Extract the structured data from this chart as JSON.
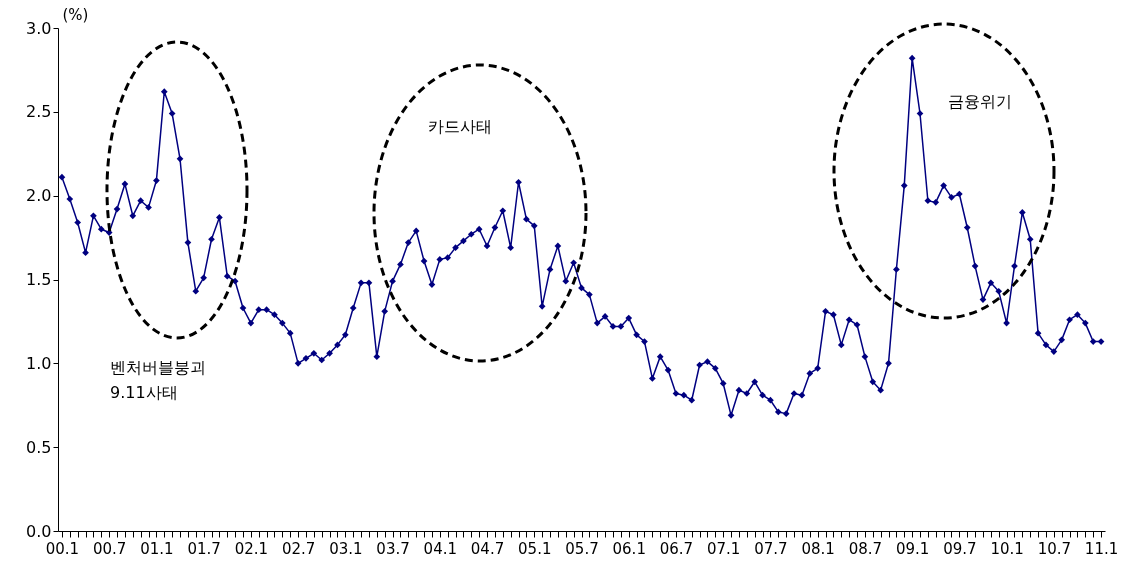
{
  "chart_data": {
    "type": "line",
    "ylabel": "(%)",
    "categories": [
      "00.1",
      null,
      null,
      null,
      null,
      null,
      "00.7",
      null,
      null,
      null,
      null,
      null,
      "01.1",
      null,
      null,
      null,
      null,
      null,
      "01.7",
      null,
      null,
      null,
      null,
      null,
      "02.1",
      null,
      null,
      null,
      null,
      null,
      "02.7",
      null,
      null,
      null,
      null,
      null,
      "03.1",
      null,
      null,
      null,
      null,
      null,
      "03.7",
      null,
      null,
      null,
      null,
      null,
      "04.1",
      null,
      null,
      null,
      null,
      null,
      "04.7",
      null,
      null,
      null,
      null,
      null,
      "05.1",
      null,
      null,
      null,
      null,
      null,
      "05.7",
      null,
      null,
      null,
      null,
      null,
      "06.1",
      null,
      null,
      null,
      null,
      null,
      "06.7",
      null,
      null,
      null,
      null,
      null,
      "07.1",
      null,
      null,
      null,
      null,
      null,
      "07.7",
      null,
      null,
      null,
      null,
      null,
      "08.1",
      null,
      null,
      null,
      null,
      null,
      "08.7",
      null,
      null,
      null,
      null,
      null,
      "09.1",
      null,
      null,
      null,
      null,
      null,
      "09.7",
      null,
      null,
      null,
      null,
      null,
      "10.1",
      null,
      null,
      null,
      null,
      null,
      "10.7",
      null,
      null,
      null,
      null,
      null,
      "11.1"
    ],
    "series": [
      {
        "color": "#000080",
        "values": [
          2.11,
          1.98,
          1.84,
          1.66,
          1.88,
          1.8,
          1.78,
          1.92,
          2.07,
          1.88,
          1.97,
          1.93,
          2.09,
          2.62,
          2.49,
          2.22,
          1.72,
          1.43,
          1.51,
          1.74,
          1.87,
          1.52,
          1.49,
          1.33,
          1.24,
          1.32,
          1.32,
          1.29,
          1.24,
          1.18,
          1.0,
          1.03,
          1.06,
          1.02,
          1.06,
          1.11,
          1.17,
          1.33,
          1.48,
          1.48,
          1.04,
          1.31,
          1.49,
          1.59,
          1.72,
          1.79,
          1.61,
          1.47,
          1.62,
          1.63,
          1.69,
          1.73,
          1.77,
          1.8,
          1.7,
          1.81,
          1.91,
          1.69,
          2.08,
          1.86,
          1.82,
          1.34,
          1.56,
          1.7,
          1.49,
          1.6,
          1.45,
          1.41,
          1.24,
          1.28,
          1.22,
          1.22,
          1.27,
          1.17,
          1.13,
          0.91,
          1.04,
          0.96,
          0.82,
          0.81,
          0.78,
          0.99,
          1.01,
          0.97,
          0.88,
          0.69,
          0.84,
          0.82,
          0.89,
          0.81,
          0.78,
          0.71,
          0.7,
          0.82,
          0.81,
          0.94,
          0.97,
          1.31,
          1.29,
          1.11,
          1.26,
          1.23,
          1.04,
          0.89,
          0.84,
          1.0,
          1.56,
          2.06,
          2.82,
          2.49,
          1.97,
          1.96,
          2.06,
          1.99,
          2.01,
          1.81,
          1.58,
          1.38,
          1.48,
          1.43,
          1.24,
          1.58,
          1.9,
          1.74,
          1.18,
          1.11,
          1.07,
          1.14,
          1.26,
          1.29,
          1.24,
          1.13,
          1.13
        ]
      }
    ],
    "ylim": [
      0,
      3
    ],
    "yticks": [
      {
        "value": 0,
        "label": "0.0"
      },
      {
        "value": 0.5,
        "label": "0.5"
      },
      {
        "value": 1,
        "label": "1.0"
      },
      {
        "value": 1.5,
        "label": "1.5"
      },
      {
        "value": 2,
        "label": "2.0"
      },
      {
        "value": 2.5,
        "label": "2.5"
      },
      {
        "value": 3,
        "label": "3.0"
      }
    ],
    "annotations": [
      "벤처버블붕괴\n9.11사태",
      "카드사태",
      "금융위기"
    ],
    "grid": false,
    "legend": false,
    "marker": "diamond",
    "line_style": "solid"
  }
}
